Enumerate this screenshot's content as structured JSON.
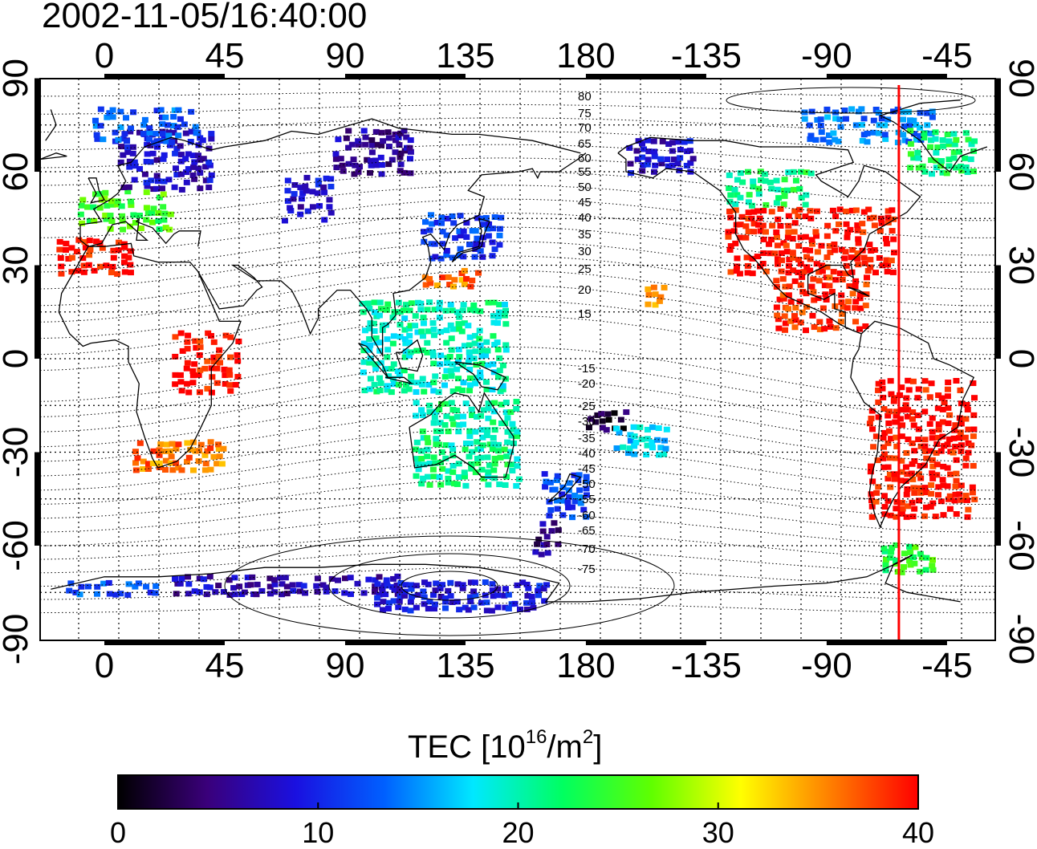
{
  "timestamp": "2002-11-05/16:40:00",
  "top_lon_ticks": [
    "0",
    "45",
    "90",
    "135",
    "180",
    "-135",
    "-90",
    "-45"
  ],
  "bottom_lon_ticks": [
    "0",
    "45",
    "90",
    "135",
    "180",
    "-135",
    "-90",
    "-45"
  ],
  "lat_ticks": [
    "90",
    "60",
    "30",
    "0",
    "-30",
    "-60",
    "-90"
  ],
  "contour_labels_north": [
    "80",
    "75",
    "70",
    "65",
    "60",
    "55",
    "50",
    "45",
    "40",
    "35",
    "30",
    "25",
    "20",
    "15"
  ],
  "contour_labels_south": [
    "-15",
    "-20",
    "-25",
    "-30",
    "-35",
    "-40",
    "-45",
    "-50",
    "-55",
    "-60",
    "-65",
    "-70",
    "-75"
  ],
  "colorbar": {
    "title_prefix": "TEC  [10",
    "title_exp": "16",
    "title_mid": "/m",
    "title_exp2": "2",
    "title_suffix": "]",
    "ticks": [
      "0",
      "10",
      "20",
      "30",
      "40"
    ],
    "min": 0,
    "max": 40,
    "colors": [
      "#000000",
      "#3a007a",
      "#1a10e0",
      "#0060ff",
      "#00e8ff",
      "#00ff60",
      "#60ff00",
      "#ffff00",
      "#ff8000",
      "#ff0000"
    ]
  },
  "marker_longitude": -63,
  "marker_color": "#ff0000",
  "tec_regions": [
    {
      "lon": [
        -18,
        10
      ],
      "lat": [
        28,
        40
      ],
      "tec": 40
    },
    {
      "lon": [
        -10,
        25
      ],
      "lat": [
        42,
        56
      ],
      "tec": 25
    },
    {
      "lon": [
        5,
        40
      ],
      "lat": [
        55,
        75
      ],
      "tec": 8
    },
    {
      "lon": [
        -5,
        35
      ],
      "lat": [
        70,
        82
      ],
      "tec": 13
    },
    {
      "lon": [
        65,
        85
      ],
      "lat": [
        45,
        60
      ],
      "tec": 8
    },
    {
      "lon": [
        85,
        115
      ],
      "lat": [
        60,
        75
      ],
      "tec": 6
    },
    {
      "lon": [
        118,
        148
      ],
      "lat": [
        33,
        48
      ],
      "tec": 11
    },
    {
      "lon": [
        118,
        140
      ],
      "lat": [
        24,
        30
      ],
      "tec": 36
    },
    {
      "lon": [
        95,
        150
      ],
      "lat": [
        -10,
        20
      ],
      "tec": 20
    },
    {
      "lon": [
        115,
        155
      ],
      "lat": [
        -40,
        -12
      ],
      "tec": 21
    },
    {
      "lon": [
        163,
        180
      ],
      "lat": [
        -50,
        -35
      ],
      "tec": 12
    },
    {
      "lon": [
        160,
        170
      ],
      "lat": [
        -62,
        -50
      ],
      "tec": 5
    },
    {
      "lon": [
        -180,
        -165
      ],
      "lat": [
        -22,
        -15
      ],
      "tec": 2
    },
    {
      "lon": [
        -170,
        -150
      ],
      "lat": [
        -30,
        -20
      ],
      "tec": 17
    },
    {
      "lon": [
        -165,
        -140
      ],
      "lat": [
        60,
        72
      ],
      "tec": 8
    },
    {
      "lon": [
        -128,
        -95
      ],
      "lat": [
        50,
        62
      ],
      "tec": 22
    },
    {
      "lon": [
        -128,
        -65
      ],
      "lat": [
        28,
        50
      ],
      "tec": 40
    },
    {
      "lon": [
        -110,
        -75
      ],
      "lat": [
        10,
        28
      ],
      "tec": 39
    },
    {
      "lon": [
        -75,
        -35
      ],
      "lat": [
        -50,
        -5
      ],
      "tec": 40
    },
    {
      "lon": [
        -70,
        -50
      ],
      "lat": [
        -68,
        -58
      ],
      "tec": 24
    },
    {
      "lon": [
        -100,
        -50
      ],
      "lat": [
        70,
        82
      ],
      "tec": 14
    },
    {
      "lon": [
        -60,
        -35
      ],
      "lat": [
        60,
        75
      ],
      "tec": 22
    },
    {
      "lon": [
        -158,
        -150
      ],
      "lat": [
        18,
        25
      ],
      "tec": 35
    },
    {
      "lon": [
        -15,
        20
      ],
      "lat": [
        -75,
        -70
      ],
      "tec": 12
    },
    {
      "lon": [
        25,
        110
      ],
      "lat": [
        -75,
        -68
      ],
      "tec": 7
    },
    {
      "lon": [
        100,
        165
      ],
      "lat": [
        -80,
        -70
      ],
      "tec": 9
    },
    {
      "lon": [
        10,
        45
      ],
      "lat": [
        -35,
        -25
      ],
      "tec": 36
    },
    {
      "lon": [
        25,
        50
      ],
      "lat": [
        -10,
        10
      ],
      "tec": 40
    }
  ]
}
